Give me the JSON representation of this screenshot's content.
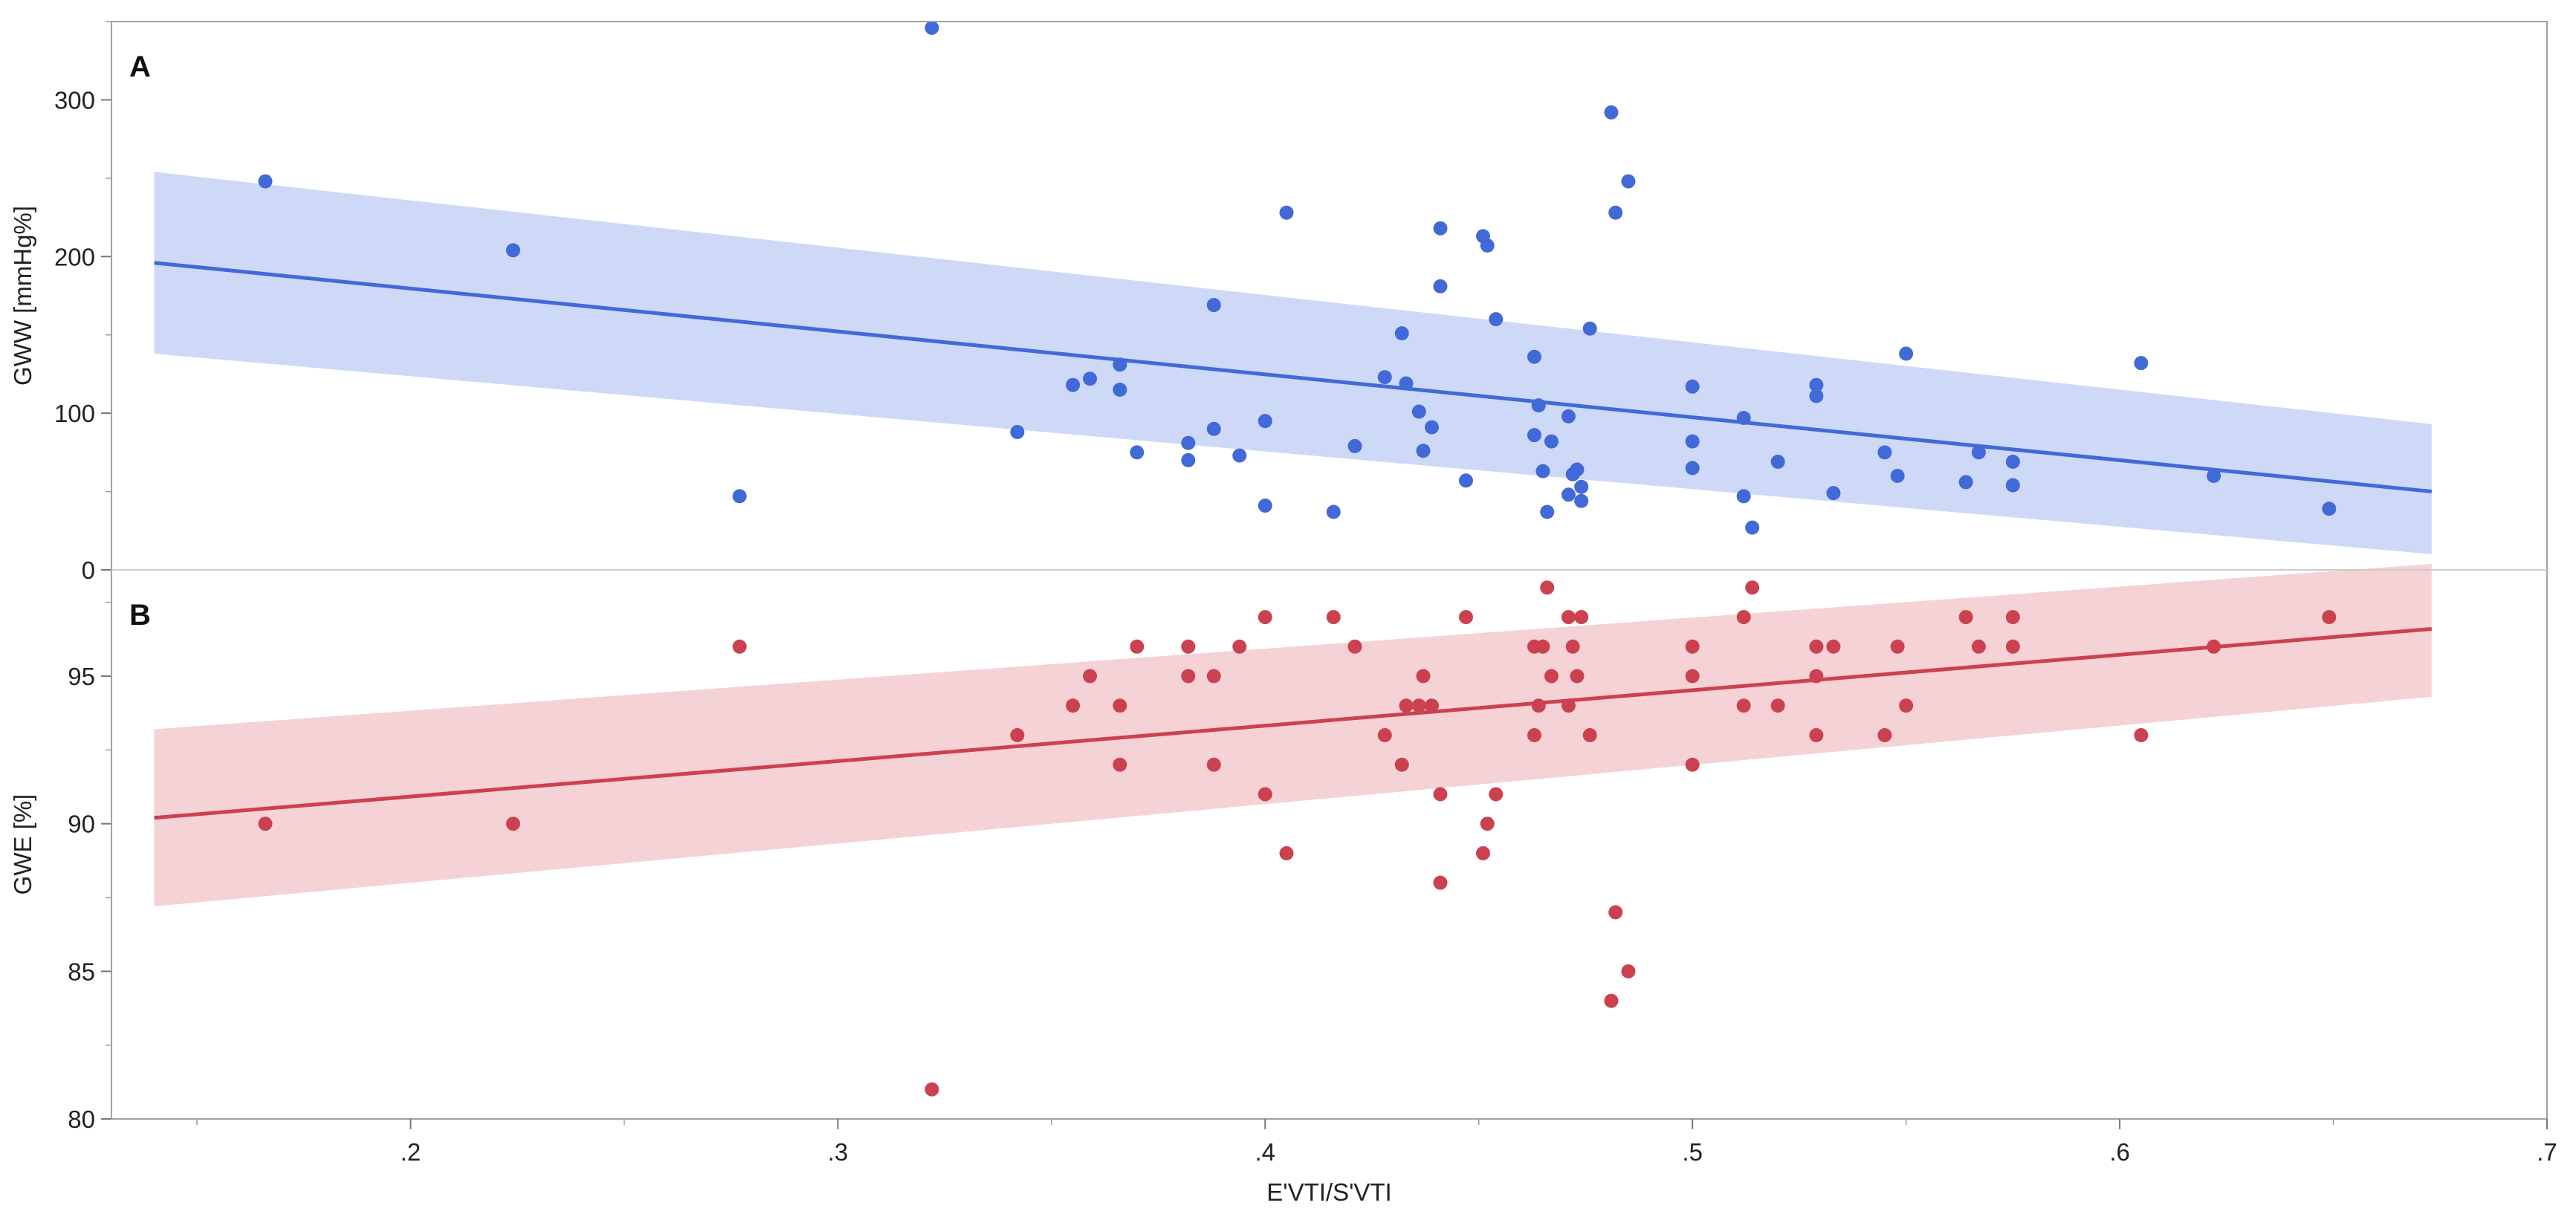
{
  "chart_data": [
    {
      "panel": "A",
      "type": "scatter",
      "ylabel": "GWW [mmHg%]",
      "ylim": [
        0,
        350
      ],
      "yticks": [
        0,
        100,
        200,
        300
      ],
      "y_minor_step": 50,
      "colors": {
        "point": "#4169d8",
        "line": "#4169d8",
        "band": "#cdd9f6"
      },
      "fit_x": [
        0.14,
        0.673
      ],
      "fit_y": [
        196,
        50
      ],
      "band_upper": [
        254,
        93
      ],
      "band_lower": [
        138,
        10
      ],
      "points": [
        [
          0.166,
          248
        ],
        [
          0.224,
          204
        ],
        [
          0.277,
          47
        ],
        [
          0.322,
          346
        ],
        [
          0.342,
          88
        ],
        [
          0.355,
          118
        ],
        [
          0.359,
          122
        ],
        [
          0.366,
          131
        ],
        [
          0.366,
          115
        ],
        [
          0.37,
          75
        ],
        [
          0.382,
          81
        ],
        [
          0.382,
          70
        ],
        [
          0.388,
          90
        ],
        [
          0.388,
          169
        ],
        [
          0.394,
          73
        ],
        [
          0.4,
          95
        ],
        [
          0.4,
          41
        ],
        [
          0.405,
          228
        ],
        [
          0.416,
          37
        ],
        [
          0.421,
          79
        ],
        [
          0.428,
          123
        ],
        [
          0.432,
          151
        ],
        [
          0.433,
          119
        ],
        [
          0.436,
          101
        ],
        [
          0.437,
          76
        ],
        [
          0.439,
          91
        ],
        [
          0.441,
          218
        ],
        [
          0.441,
          181
        ],
        [
          0.447,
          57
        ],
        [
          0.451,
          213
        ],
        [
          0.452,
          207
        ],
        [
          0.454,
          160
        ],
        [
          0.463,
          136
        ],
        [
          0.463,
          86
        ],
        [
          0.464,
          105
        ],
        [
          0.465,
          63
        ],
        [
          0.466,
          37
        ],
        [
          0.467,
          82
        ],
        [
          0.471,
          98
        ],
        [
          0.471,
          48
        ],
        [
          0.472,
          61
        ],
        [
          0.473,
          64
        ],
        [
          0.474,
          44
        ],
        [
          0.474,
          53
        ],
        [
          0.476,
          154
        ],
        [
          0.481,
          292
        ],
        [
          0.482,
          228
        ],
        [
          0.485,
          248
        ],
        [
          0.5,
          117
        ],
        [
          0.5,
          82
        ],
        [
          0.5,
          65
        ],
        [
          0.512,
          97
        ],
        [
          0.512,
          47
        ],
        [
          0.514,
          27
        ],
        [
          0.52,
          69
        ],
        [
          0.529,
          118
        ],
        [
          0.529,
          111
        ],
        [
          0.533,
          49
        ],
        [
          0.545,
          75
        ],
        [
          0.548,
          60
        ],
        [
          0.55,
          138
        ],
        [
          0.564,
          56
        ],
        [
          0.567,
          75
        ],
        [
          0.575,
          69
        ],
        [
          0.575,
          54
        ],
        [
          0.605,
          132
        ],
        [
          0.622,
          60
        ],
        [
          0.649,
          39
        ]
      ]
    },
    {
      "panel": "B",
      "type": "scatter",
      "ylabel": "GWE [%]",
      "ylim": [
        80,
        98.6
      ],
      "yticks": [
        80,
        85,
        90,
        95
      ],
      "y_minor_step": 2.5,
      "colors": {
        "point": "#cc4150",
        "line": "#cc4150",
        "band": "#f4d2d6"
      },
      "fit_x": [
        0.14,
        0.673
      ],
      "fit_y": [
        90.2,
        96.6
      ],
      "band_upper": [
        93.2,
        98.8
      ],
      "band_lower": [
        87.2,
        94.3
      ],
      "points": [
        [
          0.166,
          90
        ],
        [
          0.224,
          90
        ],
        [
          0.277,
          96
        ],
        [
          0.322,
          81
        ],
        [
          0.342,
          93
        ],
        [
          0.355,
          94
        ],
        [
          0.359,
          95
        ],
        [
          0.366,
          94
        ],
        [
          0.366,
          92
        ],
        [
          0.37,
          96
        ],
        [
          0.382,
          96
        ],
        [
          0.382,
          95
        ],
        [
          0.388,
          95
        ],
        [
          0.388,
          92
        ],
        [
          0.394,
          96
        ],
        [
          0.4,
          97
        ],
        [
          0.4,
          91
        ],
        [
          0.405,
          89
        ],
        [
          0.416,
          97
        ],
        [
          0.421,
          96
        ],
        [
          0.428,
          93
        ],
        [
          0.432,
          92
        ],
        [
          0.433,
          94
        ],
        [
          0.436,
          94
        ],
        [
          0.437,
          95
        ],
        [
          0.439,
          94
        ],
        [
          0.441,
          91
        ],
        [
          0.441,
          88
        ],
        [
          0.447,
          97
        ],
        [
          0.451,
          89
        ],
        [
          0.452,
          90
        ],
        [
          0.454,
          91
        ],
        [
          0.463,
          96
        ],
        [
          0.463,
          93
        ],
        [
          0.464,
          94
        ],
        [
          0.465,
          96
        ],
        [
          0.466,
          98
        ],
        [
          0.467,
          95
        ],
        [
          0.471,
          97
        ],
        [
          0.471,
          94
        ],
        [
          0.472,
          96
        ],
        [
          0.473,
          95
        ],
        [
          0.474,
          97
        ],
        [
          0.476,
          93
        ],
        [
          0.481,
          84
        ],
        [
          0.482,
          87
        ],
        [
          0.485,
          85
        ],
        [
          0.5,
          96
        ],
        [
          0.5,
          95
        ],
        [
          0.5,
          92
        ],
        [
          0.512,
          97
        ],
        [
          0.512,
          94
        ],
        [
          0.514,
          98
        ],
        [
          0.52,
          94
        ],
        [
          0.529,
          96
        ],
        [
          0.529,
          95
        ],
        [
          0.529,
          93
        ],
        [
          0.533,
          96
        ],
        [
          0.545,
          93
        ],
        [
          0.548,
          96
        ],
        [
          0.55,
          94
        ],
        [
          0.564,
          97
        ],
        [
          0.567,
          96
        ],
        [
          0.575,
          97
        ],
        [
          0.575,
          96
        ],
        [
          0.605,
          93
        ],
        [
          0.622,
          96
        ],
        [
          0.649,
          97
        ]
      ]
    }
  ],
  "x_axis": {
    "label": "E'VTI/S'VTI",
    "xlim": [
      0.13,
      0.7
    ],
    "ticks": [
      0.2,
      0.3,
      0.4,
      0.5,
      0.6,
      0.7
    ],
    "minor_step": 0.05
  }
}
